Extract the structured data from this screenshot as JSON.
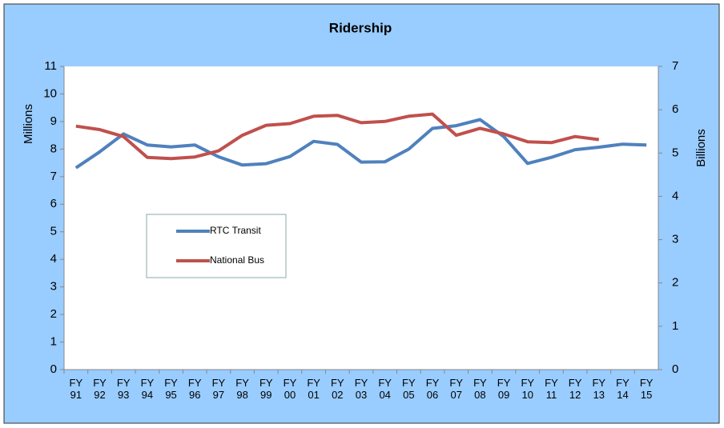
{
  "chart_data": {
    "type": "line",
    "title": "Ridership",
    "y_label": "Millions",
    "y2_label": "Billions",
    "categories": [
      "FY 91",
      "FY 92",
      "FY 93",
      "FY 94",
      "FY 95",
      "FY 96",
      "FY 97",
      "FY 98",
      "FY 99",
      "FY 00",
      "FY 01",
      "FY 02",
      "FY 03",
      "FY 04",
      "FY 05",
      "FY 06",
      "FY 07",
      "FY 08",
      "FY 09",
      "FY 10",
      "FY 11",
      "FY 12",
      "FY 13",
      "FY 14",
      "FY 15"
    ],
    "series": [
      {
        "name": "RTC Transit",
        "color": "#4f81bd",
        "values": [
          7.32,
          7.9,
          8.55,
          8.15,
          8.08,
          8.15,
          7.72,
          7.42,
          7.47,
          7.73,
          8.28,
          8.17,
          7.53,
          7.54,
          8.0,
          8.75,
          8.85,
          9.07,
          8.45,
          7.48,
          7.7,
          7.98,
          8.07,
          8.18,
          8.15
        ]
      },
      {
        "name": "National Bus",
        "color": "#c0504d",
        "axis": "y2",
        "values": [
          5.62,
          5.54,
          5.38,
          4.9,
          4.87,
          4.91,
          5.05,
          5.41,
          5.64,
          5.68,
          5.85,
          5.87,
          5.7,
          5.73,
          5.85,
          5.9,
          5.41,
          5.57,
          5.44,
          5.26,
          5.24,
          5.38,
          5.31,
          null,
          null
        ]
      }
    ],
    "ylim": [
      0,
      11
    ],
    "yticks": [
      0,
      1,
      2,
      3,
      4,
      5,
      6,
      7,
      8,
      9,
      10,
      11
    ],
    "y2lim": [
      0,
      7
    ],
    "y2ticks": [
      0,
      1,
      2,
      3,
      4,
      5,
      6,
      7
    ],
    "grid": false
  }
}
